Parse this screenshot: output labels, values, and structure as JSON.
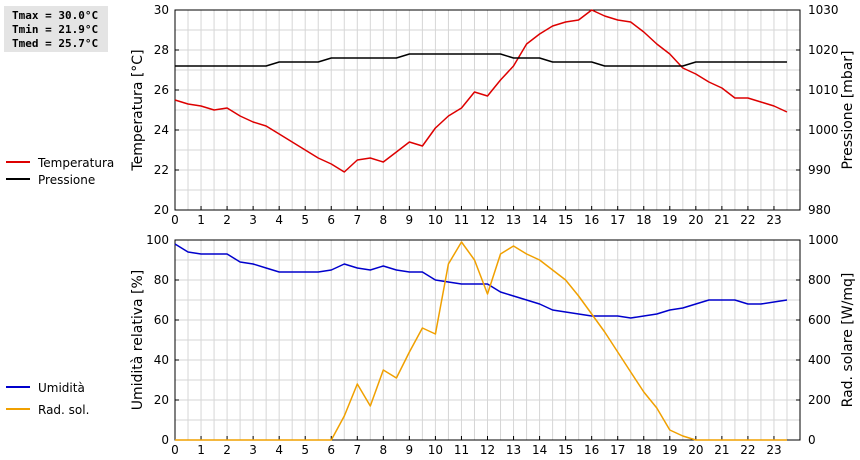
{
  "stats": {
    "tmax": "Tmax = 30.0°C",
    "tmin": "Tmin = 21.9°C",
    "tmed": "Tmed = 25.7°C"
  },
  "chart_data": [
    {
      "type": "line",
      "ylabel_left": "Temperatura [°C]",
      "ylabel_right": "Pressione [mbar]",
      "xlim": [
        0,
        24
      ],
      "xticks": [
        0,
        1,
        2,
        3,
        4,
        5,
        6,
        7,
        8,
        9,
        10,
        11,
        12,
        13,
        14,
        15,
        16,
        17,
        18,
        19,
        20,
        21,
        22,
        23
      ],
      "ylim_left": [
        20,
        30
      ],
      "yticks_left": [
        20,
        22,
        24,
        26,
        28,
        30
      ],
      "ylim_right": [
        980,
        1030
      ],
      "yticks_right": [
        980,
        990,
        1000,
        1010,
        1020,
        1030
      ],
      "grid": true,
      "series": [
        {
          "name": "Temperatura",
          "axis": "left",
          "color": "#dd0000",
          "x": [
            0,
            0.5,
            1,
            1.5,
            2,
            2.5,
            3,
            3.5,
            4,
            4.5,
            5,
            5.5,
            6,
            6.5,
            7,
            7.5,
            8,
            8.5,
            9,
            9.5,
            10,
            10.5,
            11,
            11.5,
            12,
            12.5,
            13,
            13.5,
            14,
            14.5,
            15,
            15.5,
            16,
            16.5,
            17,
            17.5,
            18,
            18.5,
            19,
            19.5,
            20,
            20.5,
            21,
            21.5,
            22,
            22.5,
            23,
            23.5
          ],
          "y": [
            25.5,
            25.3,
            25.2,
            25.0,
            25.1,
            24.7,
            24.4,
            24.2,
            23.8,
            23.4,
            23.0,
            22.6,
            22.3,
            21.9,
            22.5,
            22.6,
            22.4,
            22.9,
            23.4,
            23.2,
            24.1,
            24.7,
            25.1,
            25.9,
            25.7,
            26.5,
            27.2,
            28.3,
            28.8,
            29.2,
            29.4,
            29.5,
            30.0,
            29.7,
            29.5,
            29.4,
            28.9,
            28.3,
            27.8,
            27.1,
            26.8,
            26.4,
            26.1,
            25.6,
            25.6,
            25.4,
            25.2,
            24.9
          ]
        },
        {
          "name": "Pressione",
          "axis": "right",
          "color": "#000000",
          "x": [
            0,
            3.5,
            4,
            5,
            5.5,
            6,
            7,
            8,
            8.5,
            9,
            10,
            11,
            12,
            12.5,
            13,
            14,
            14.5,
            15,
            15.5,
            16,
            16.5,
            17,
            18,
            19,
            19.5,
            20,
            21,
            22,
            23,
            23.5
          ],
          "y": [
            1016,
            1016,
            1017,
            1017,
            1017,
            1018,
            1018,
            1018,
            1018,
            1019,
            1019,
            1019,
            1019,
            1019,
            1018,
            1018,
            1017,
            1017,
            1017,
            1017,
            1016,
            1016,
            1016,
            1016,
            1016,
            1017,
            1017,
            1017,
            1017,
            1017
          ]
        }
      ]
    },
    {
      "type": "line",
      "ylabel_left": "Umidità relativa [%]",
      "ylabel_right": "Rad. solare [W/mq]",
      "xlim": [
        0,
        24
      ],
      "xticks": [
        0,
        1,
        2,
        3,
        4,
        5,
        6,
        7,
        8,
        9,
        10,
        11,
        12,
        13,
        14,
        15,
        16,
        17,
        18,
        19,
        20,
        21,
        22,
        23
      ],
      "ylim_left": [
        0,
        100
      ],
      "yticks_left": [
        0,
        20,
        40,
        60,
        80,
        100
      ],
      "ylim_right": [
        0,
        1000
      ],
      "yticks_right": [
        0,
        200,
        400,
        600,
        800,
        1000
      ],
      "grid": true,
      "series": [
        {
          "name": "Umidità",
          "axis": "left",
          "color": "#0000cc",
          "x": [
            0,
            0.5,
            1,
            1.5,
            2,
            2.5,
            3,
            3.5,
            4,
            4.5,
            5,
            5.5,
            6,
            6.5,
            7,
            7.5,
            8,
            8.5,
            9,
            9.5,
            10,
            10.5,
            11,
            11.5,
            12,
            12.5,
            13,
            13.5,
            14,
            14.5,
            15,
            15.5,
            16,
            16.5,
            17,
            17.5,
            18,
            18.5,
            19,
            19.5,
            20,
            20.5,
            21,
            21.5,
            22,
            22.5,
            23,
            23.5
          ],
          "y": [
            98,
            94,
            93,
            93,
            93,
            89,
            88,
            86,
            84,
            84,
            84,
            84,
            85,
            88,
            86,
            85,
            87,
            85,
            84,
            84,
            80,
            79,
            78,
            78,
            78,
            74,
            72,
            70,
            68,
            65,
            64,
            63,
            62,
            62,
            62,
            61,
            62,
            63,
            65,
            66,
            68,
            70,
            70,
            70,
            68,
            68,
            69,
            70
          ]
        },
        {
          "name": "Rad. sol.",
          "axis": "right",
          "color": "#f0a000",
          "x": [
            0,
            6,
            6.5,
            7,
            7.5,
            8,
            8.5,
            9,
            9.5,
            10,
            10.5,
            11,
            11.5,
            12,
            12.5,
            13,
            13.5,
            14,
            14.5,
            15,
            15.5,
            16,
            16.5,
            17,
            17.5,
            18,
            18.5,
            19,
            19.5,
            20,
            20.5,
            21,
            22,
            23,
            23.5
          ],
          "y": [
            0,
            0,
            120,
            280,
            170,
            350,
            310,
            440,
            560,
            530,
            880,
            990,
            900,
            730,
            930,
            970,
            930,
            900,
            850,
            800,
            720,
            630,
            540,
            440,
            340,
            240,
            160,
            50,
            20,
            0,
            0,
            0,
            0,
            0,
            0
          ]
        }
      ]
    }
  ]
}
